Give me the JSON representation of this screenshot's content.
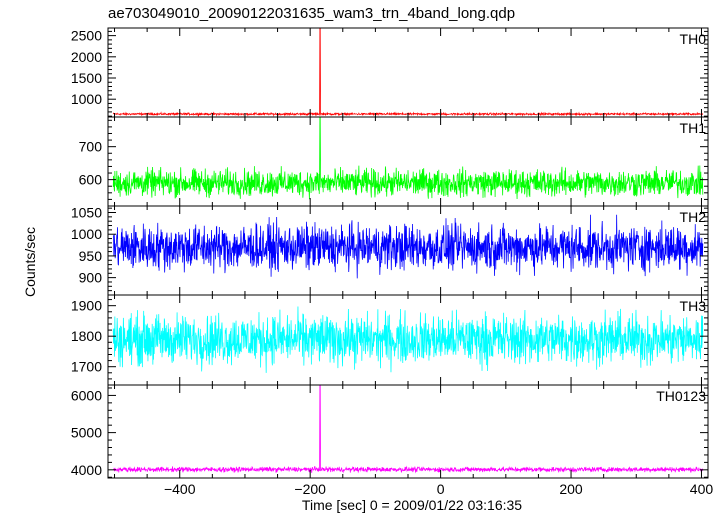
{
  "chart_data": {
    "type": "line",
    "title": "ae703049010_20090122031635_wam3_trn_4band_long.qdp",
    "xlabel": "Time [sec] 0 = 2009/01/22 03:16:35",
    "ylabel": "Counts/sec",
    "xlim": [
      -510,
      410
    ],
    "x_ticks": [
      -400,
      -200,
      0,
      200,
      400
    ],
    "panels": [
      {
        "name": "TH0",
        "color": "#ff0000",
        "ylim": [
          580,
          2680
        ],
        "y_ticks": [
          1000,
          1500,
          2000,
          2500
        ],
        "baseline": 650,
        "noise": 20,
        "spike": {
          "x": -185,
          "y": 2680
        }
      },
      {
        "name": "TH1",
        "color": "#00ff00",
        "ylim": [
          520,
          790
        ],
        "y_ticks": [
          600,
          700
        ],
        "baseline": 590,
        "noise": 35,
        "spike": {
          "x": -185,
          "y": 790
        }
      },
      {
        "name": "TH2",
        "color": "#0000ff",
        "ylim": [
          860,
          1065
        ],
        "y_ticks": [
          900,
          950,
          1000,
          1050
        ],
        "baseline": 970,
        "noise": 45,
        "spike": null
      },
      {
        "name": "TH3",
        "color": "#00ffff",
        "ylim": [
          1640,
          1935
        ],
        "y_ticks": [
          1700,
          1800,
          1900
        ],
        "baseline": 1790,
        "noise": 70,
        "spike": null
      },
      {
        "name": "TH0123",
        "color": "#ff00ff",
        "ylim": [
          3780,
          6280
        ],
        "y_ticks": [
          4000,
          5000,
          6000
        ],
        "baseline": 4010,
        "noise": 55,
        "spike": {
          "x": -185,
          "y": 6280
        }
      }
    ]
  }
}
